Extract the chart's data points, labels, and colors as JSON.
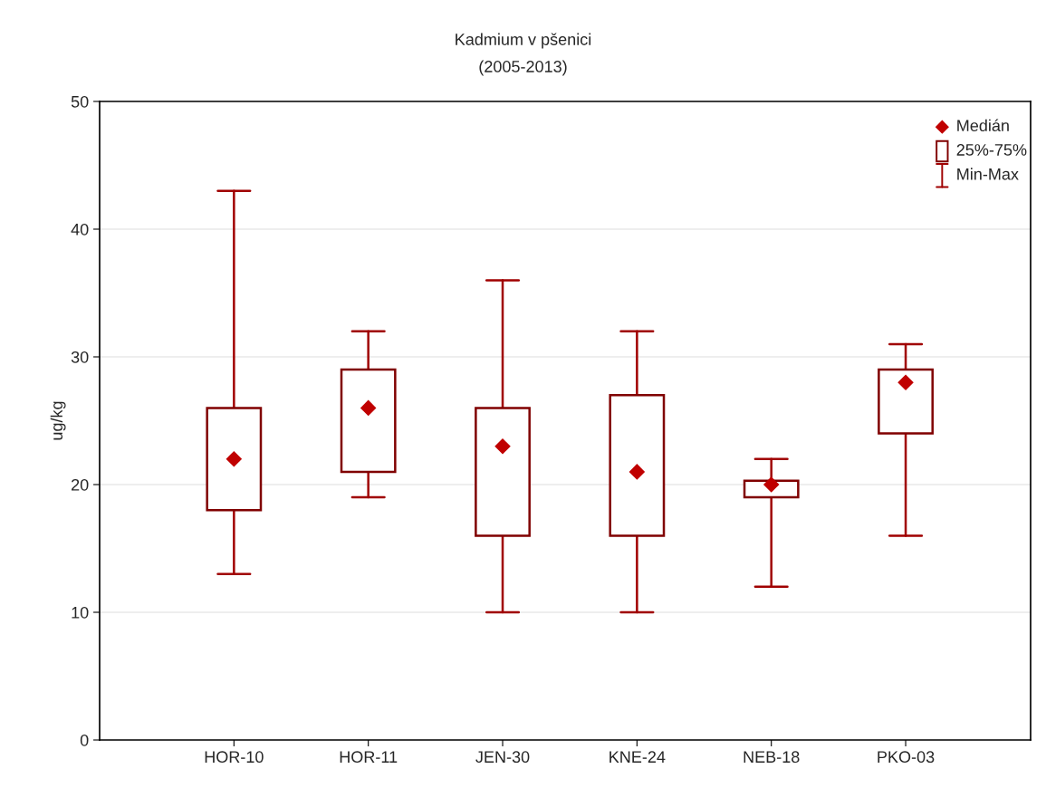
{
  "chart_data": {
    "type": "box",
    "title": "Kadmium v pšenici",
    "subtitle": "(2005-2013)",
    "ylabel": "ug/kg",
    "categories": [
      "HOR-10",
      "HOR-11",
      "JEN-30",
      "KNE-24",
      "NEB-18",
      "PKO-03"
    ],
    "series": [
      {
        "color": "#800000",
        "marker": "diamond",
        "boxes": [
          {
            "low": 13,
            "q1": 18,
            "median": 22,
            "q3": 26,
            "high": 43
          },
          {
            "low": 19,
            "q1": 21,
            "median": 26,
            "q3": 29,
            "high": 32
          },
          {
            "low": 10,
            "q1": 16,
            "median": 23,
            "q3": 26,
            "high": 36
          },
          {
            "low": 10,
            "q1": 16,
            "median": 21,
            "q3": 27,
            "high": 32
          },
          {
            "low": 12,
            "q1": 19,
            "median": 20,
            "q3": 20.3,
            "high": 22
          },
          {
            "low": 16,
            "q1": 24,
            "median": 28,
            "q3": 29,
            "high": 31
          }
        ]
      }
    ],
    "annotations": [
      "Medián",
      "25%-75%",
      "Min-Max"
    ],
    "ylim": [
      0,
      50
    ],
    "yticks": [
      0,
      10,
      20,
      30,
      40,
      50
    ],
    "grid": "y"
  }
}
